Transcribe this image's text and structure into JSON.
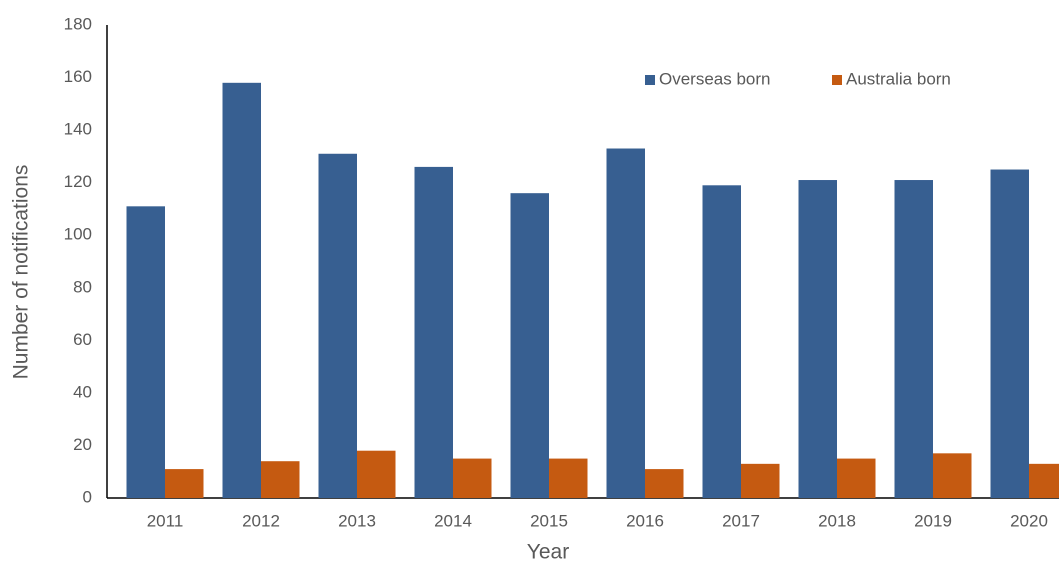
{
  "chart_data": {
    "type": "bar",
    "categories": [
      "2011",
      "2012",
      "2013",
      "2014",
      "2015",
      "2016",
      "2017",
      "2018",
      "2019",
      "2020"
    ],
    "series": [
      {
        "name": "Overseas born",
        "color": "#375f91",
        "values": [
          111,
          158,
          131,
          126,
          116,
          133,
          119,
          121,
          121,
          125
        ]
      },
      {
        "name": "Australia born",
        "color": "#c55a11",
        "values": [
          11,
          14,
          18,
          15,
          15,
          11,
          13,
          15,
          17,
          13
        ]
      }
    ],
    "xlabel": "Year",
    "ylabel": "Number of notifications",
    "ylim": [
      0,
      180
    ],
    "yticks": [
      0,
      20,
      40,
      60,
      80,
      100,
      120,
      140,
      160,
      180
    ],
    "grid": false,
    "legend": "top-right"
  }
}
